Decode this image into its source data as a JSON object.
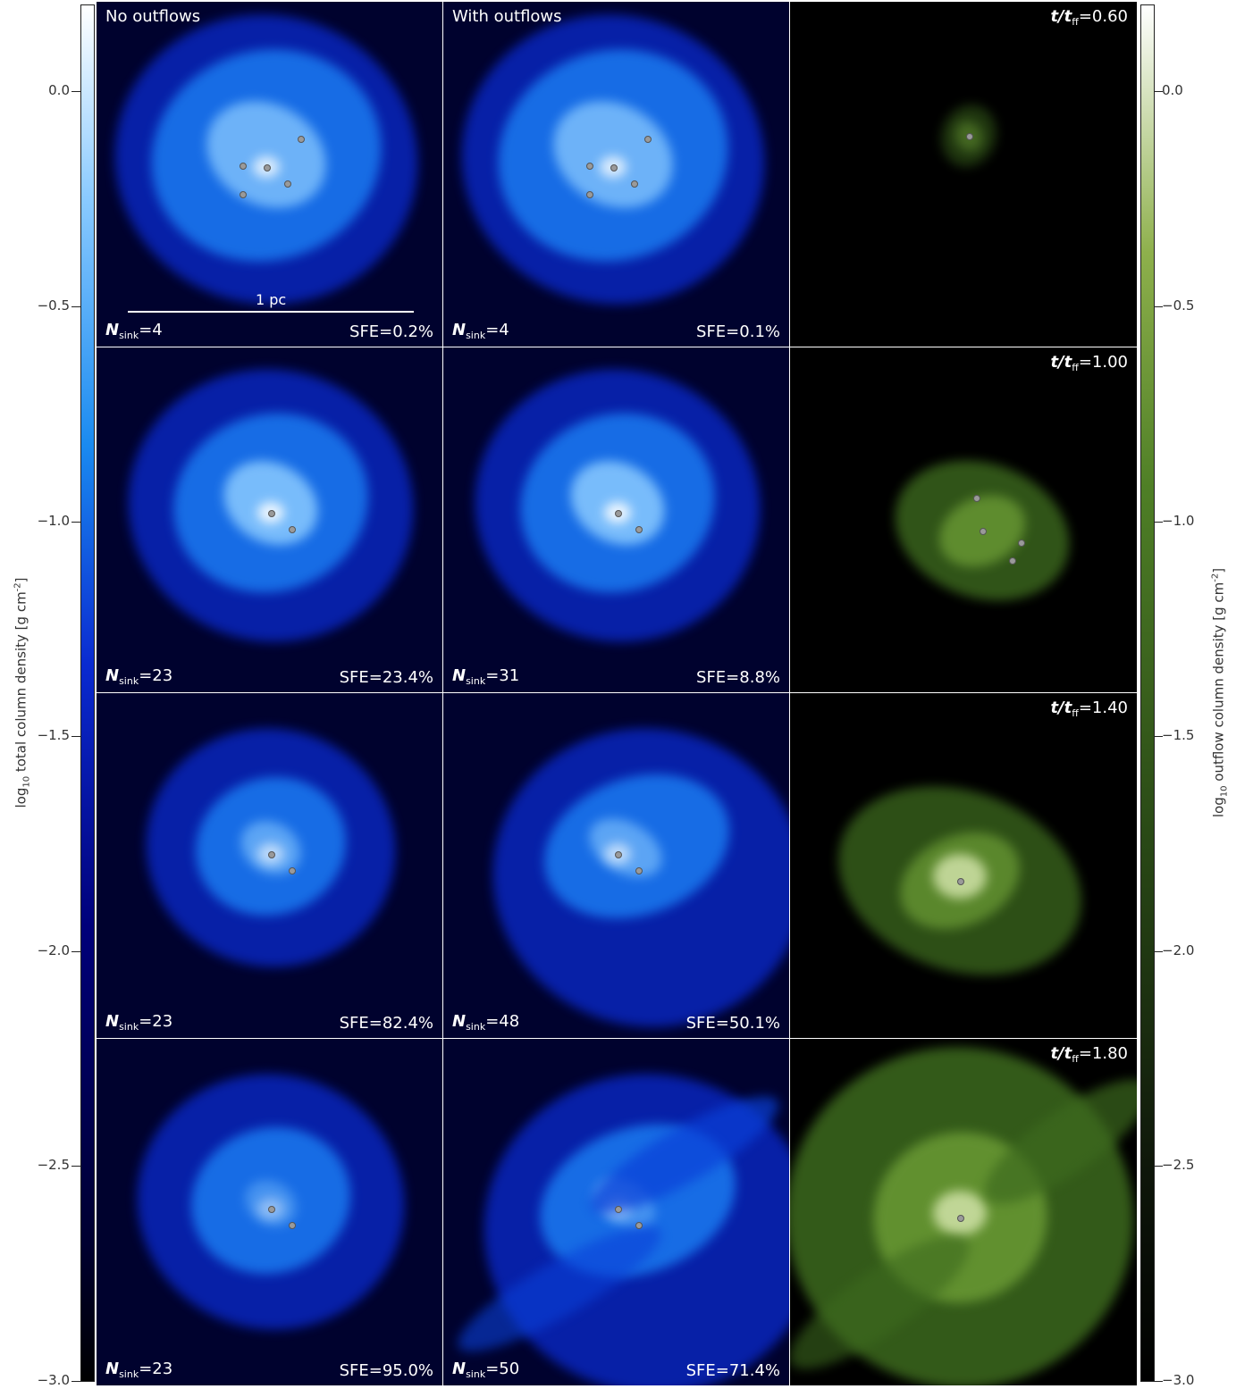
{
  "colorbar_left": {
    "label": "log10 total column density [g cm^-2]",
    "label_prefix": "log",
    "label_sub": "10",
    "label_main": "total column density [g cm",
    "label_sup": "-2",
    "label_end": "]",
    "ticks": [
      "0.0",
      "−0.5",
      "−1.0",
      "−1.5",
      "−2.0",
      "−2.5",
      "−3.0"
    ],
    "range": [
      -3.0,
      0.2
    ],
    "colormap": [
      "#000000",
      "#00007a",
      "#1a8af0",
      "#ffffff"
    ]
  },
  "colorbar_right": {
    "label_prefix": "log",
    "label_sub": "10",
    "label_main": "outflow column density [g cm",
    "label_sup": "-2",
    "label_end": "]",
    "ticks": [
      "0.0",
      "−0.5",
      "−1.0",
      "−1.5",
      "−2.0",
      "−2.5",
      "−3.0"
    ],
    "range": [
      -3.0,
      0.2
    ],
    "colormap": [
      "#000000",
      "#2a4a16",
      "#8eb04c",
      "#ffffff"
    ]
  },
  "columns": {
    "col1_title": "No outflows",
    "col2_title": "With outflows"
  },
  "scale": {
    "label": "1 pc"
  },
  "rows": [
    {
      "t_label": "t/t",
      "t_sub": "ff",
      "t_value": "=0.60",
      "no_outflow": {
        "nsink": "=4",
        "sfe": "SFE=0.2%"
      },
      "with_outflow": {
        "nsink": "=4",
        "sfe": "SFE=0.1%"
      }
    },
    {
      "t_label": "t/t",
      "t_sub": "ff",
      "t_value": "=1.00",
      "no_outflow": {
        "nsink": "=23",
        "sfe": "SFE=23.4%"
      },
      "with_outflow": {
        "nsink": "=31",
        "sfe": "SFE=8.8%"
      }
    },
    {
      "t_label": "t/t",
      "t_sub": "ff",
      "t_value": "=1.40",
      "no_outflow": {
        "nsink": "=23",
        "sfe": "SFE=82.4%"
      },
      "with_outflow": {
        "nsink": "=48",
        "sfe": "SFE=50.1%"
      }
    },
    {
      "t_label": "t/t",
      "t_sub": "ff",
      "t_value": "=1.80",
      "no_outflow": {
        "nsink": "=23",
        "sfe": "SFE=95.0%"
      },
      "with_outflow": {
        "nsink": "=50",
        "sfe": "SFE=71.4%"
      }
    }
  ],
  "nsink_symbol": "N",
  "nsink_sub": "sink"
}
